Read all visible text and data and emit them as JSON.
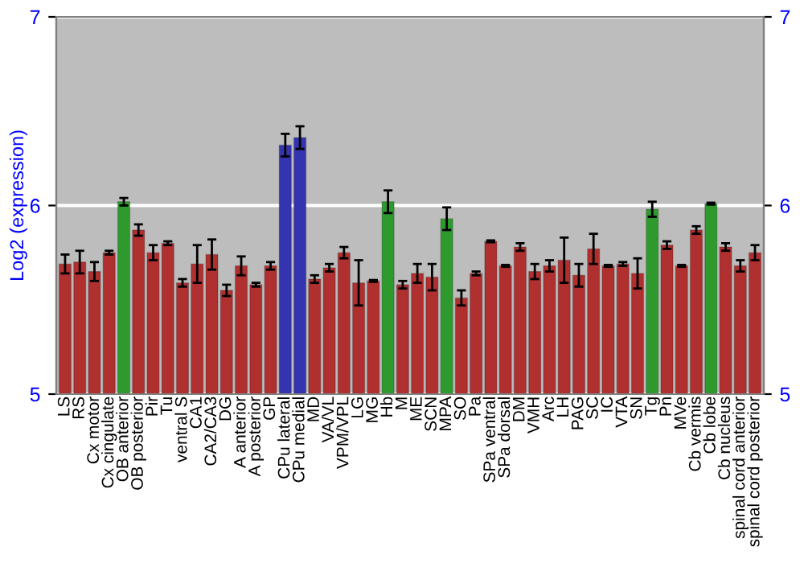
{
  "chart_data": {
    "type": "bar",
    "ylabel": "Log2 (expression)",
    "categories": [
      "LS",
      "RS",
      "Cx motor",
      "Cx cingulate",
      "OB anterior",
      "OB posterior",
      "Pir",
      "Tu",
      "ventral S",
      "CA1",
      "CA2/CA3",
      "DG",
      "A anterior",
      "A posterior",
      "GP",
      "CPu lateral",
      "CPu medial",
      "MD",
      "VA/VL",
      "VPM/VPL",
      "LG",
      "MG",
      "Hb",
      "M",
      "ME",
      "SCN",
      "MPA",
      "SO",
      "Pa",
      "SPa ventral",
      "SPa dorsal",
      "DM",
      "VMH",
      "Arc",
      "LH",
      "PAG",
      "SC",
      "IC",
      "VTA",
      "SN",
      "Tg",
      "Pn",
      "MVe",
      "Cb vermis",
      "Cb lobe",
      "Cb nucleus",
      "spinal cord anterior",
      "spinal cord posterior"
    ],
    "values": [
      5.69,
      5.7,
      5.65,
      5.75,
      6.02,
      5.87,
      5.75,
      5.8,
      5.59,
      5.69,
      5.74,
      5.55,
      5.68,
      5.58,
      5.68,
      6.32,
      6.36,
      5.61,
      5.67,
      5.75,
      5.59,
      5.6,
      6.02,
      5.58,
      5.64,
      5.62,
      5.93,
      5.51,
      5.64,
      5.81,
      5.68,
      5.78,
      5.65,
      5.68,
      5.71,
      5.63,
      5.77,
      5.68,
      5.69,
      5.64,
      5.98,
      5.79,
      5.68,
      5.87,
      6.01,
      5.78,
      5.68,
      5.75
    ],
    "errors": [
      0.05,
      0.06,
      0.05,
      0.01,
      0.02,
      0.03,
      0.04,
      0.01,
      0.02,
      0.1,
      0.08,
      0.03,
      0.05,
      0.01,
      0.02,
      0.06,
      0.06,
      0.02,
      0.02,
      0.03,
      0.12,
      0.005,
      0.06,
      0.02,
      0.05,
      0.07,
      0.06,
      0.04,
      0.01,
      0.005,
      0.005,
      0.02,
      0.04,
      0.03,
      0.12,
      0.06,
      0.08,
      0.005,
      0.01,
      0.08,
      0.04,
      0.02,
      0.005,
      0.02,
      0.005,
      0.02,
      0.03,
      0.04
    ],
    "colors": [
      "#b03030",
      "#b03030",
      "#b03030",
      "#b03030",
      "#2e9a2e",
      "#b03030",
      "#b03030",
      "#b03030",
      "#b03030",
      "#b03030",
      "#b03030",
      "#b03030",
      "#b03030",
      "#b03030",
      "#b03030",
      "#3434b0",
      "#3434b0",
      "#b03030",
      "#b03030",
      "#b03030",
      "#b03030",
      "#b03030",
      "#2e9a2e",
      "#b03030",
      "#b03030",
      "#b03030",
      "#2e9a2e",
      "#b03030",
      "#b03030",
      "#b03030",
      "#b03030",
      "#b03030",
      "#b03030",
      "#b03030",
      "#b03030",
      "#b03030",
      "#b03030",
      "#b03030",
      "#b03030",
      "#b03030",
      "#2e9a2e",
      "#b03030",
      "#b03030",
      "#b03030",
      "#2e9a2e",
      "#b03030",
      "#b03030",
      "#b03030"
    ],
    "ylim": [
      5,
      7
    ],
    "yticks": [
      5,
      6,
      7
    ],
    "y2lim": [
      5,
      7
    ],
    "y2ticks": [
      5,
      6,
      7
    ],
    "grid": "y"
  }
}
